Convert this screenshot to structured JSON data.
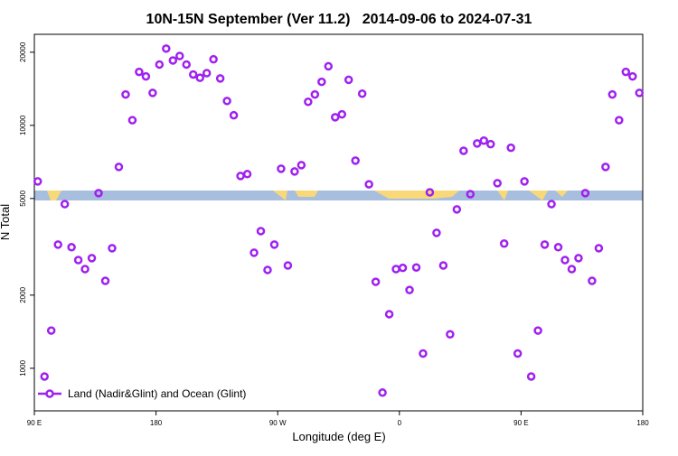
{
  "chart_data": {
    "type": "scatter",
    "title": "10N-15N September (Ver 11.2)   2014-09-06 to 2024-07-31",
    "x_label": "Longitude (deg E)",
    "y_label": "N Total",
    "log_y": true,
    "grid": false,
    "legend_position": "bottom-left",
    "xlim": [
      90,
      540
    ],
    "ylim": [
      668,
      23700
    ],
    "xticks": [
      {
        "value": 90,
        "label": "90 E"
      },
      180,
      {
        "value": 270,
        "label": "90 W"
      },
      {
        "value": 360,
        "label": "0"
      },
      {
        "value": 450,
        "label": "90 E"
      },
      {
        "value": 540,
        "label": "180"
      }
    ],
    "yticks": [
      1000,
      2000,
      5000,
      10000,
      20000
    ],
    "x": [
      92.5,
      97.5,
      102.5,
      107.5,
      112.5,
      117.5,
      122.5,
      127.5,
      132.5,
      137.5,
      142.5,
      147.5,
      152.5,
      157.5,
      162.5,
      167.5,
      172.5,
      177.5,
      182.5,
      187.5,
      192.5,
      197.5,
      202.5,
      207.5,
      212.5,
      217.5,
      222.5,
      227.5,
      232.5,
      237.5,
      242.5,
      247.5,
      252.5,
      257.5,
      262.5,
      267.5,
      272.5,
      277.5,
      282.5,
      287.5,
      292.5,
      297.5,
      302.5,
      307.5,
      312.5,
      317.5,
      322.5,
      327.5,
      332.5,
      337.5,
      342.5,
      347.5,
      352.5,
      357.5,
      362.5,
      367.5,
      372.5,
      377.5,
      382.5,
      387.5,
      392.5,
      397.5,
      402.5,
      407.5,
      412.5,
      417.5,
      422.5,
      427.5,
      432.5,
      437.5,
      442.5,
      447.5,
      452.5,
      457.5,
      462.5,
      467.5,
      472.5,
      477.5,
      482.5,
      487.5,
      492.5,
      497.5,
      502.5,
      507.5,
      512.5,
      517.5,
      522.5,
      527.5,
      532.5,
      537.5
    ],
    "series": [
      {
        "name": "Land (Nadir&Glint) and Ocean (Glint)",
        "color": "#a020f0",
        "values": [
          5880,
          925,
          1430,
          3230,
          4740,
          3150,
          2790,
          2560,
          2840,
          5260,
          2290,
          3120,
          6740,
          13400,
          10500,
          16600,
          15900,
          13600,
          17800,
          20700,
          18500,
          19300,
          17800,
          16200,
          15700,
          16400,
          18700,
          15600,
          12600,
          11000,
          6190,
          6300,
          2990,
          3670,
          2540,
          3230,
          6630,
          2650,
          6460,
          6860,
          12500,
          13400,
          15100,
          17500,
          10800,
          11100,
          15400,
          7160,
          13500,
          5720,
          2270,
          794,
          1670,
          2560,
          2590,
          2100,
          2600,
          1150,
          5300,
          3610,
          2650,
          1380,
          4510,
          7860,
          5210,
          8420,
          8650,
          8370,
          5780,
          3260,
          8090,
          1150,
          5880,
          925,
          1430,
          3230,
          4740,
          3150,
          2790,
          2560,
          2840,
          5260,
          2290,
          3120,
          6740,
          13400,
          10500,
          16600,
          15900,
          13600
        ]
      }
    ]
  }
}
